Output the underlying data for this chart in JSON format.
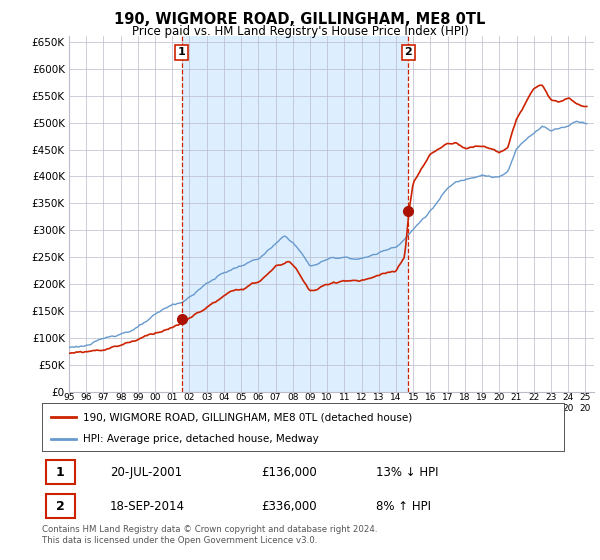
{
  "title": "190, WIGMORE ROAD, GILLINGHAM, ME8 0TL",
  "subtitle": "Price paid vs. HM Land Registry's House Price Index (HPI)",
  "legend_line1": "190, WIGMORE ROAD, GILLINGHAM, ME8 0TL (detached house)",
  "legend_line2": "HPI: Average price, detached house, Medway",
  "sale1_label": "1",
  "sale1_date": "20-JUL-2001",
  "sale1_price": "£136,000",
  "sale1_hpi": "13% ↓ HPI",
  "sale2_label": "2",
  "sale2_date": "18-SEP-2014",
  "sale2_price": "£336,000",
  "sale2_hpi": "8% ↑ HPI",
  "footnote": "Contains HM Land Registry data © Crown copyright and database right 2024.\nThis data is licensed under the Open Government Licence v3.0.",
  "hpi_color": "#6699cc",
  "price_color": "#cc2200",
  "sale_marker_color": "#aa1100",
  "vline_color": "#cc2200",
  "grid_color": "#bbbbcc",
  "bg_between_color": "#ddeeff",
  "background_color": "#ffffff",
  "ylim": [
    0,
    660000
  ],
  "yticks": [
    0,
    50000,
    100000,
    150000,
    200000,
    250000,
    300000,
    350000,
    400000,
    450000,
    500000,
    550000,
    600000,
    650000
  ],
  "sale1_x": 2001.55,
  "sale1_y": 136000,
  "sale2_x": 2014.72,
  "sale2_y": 336000,
  "xmin": 1995,
  "xmax": 2025.5
}
